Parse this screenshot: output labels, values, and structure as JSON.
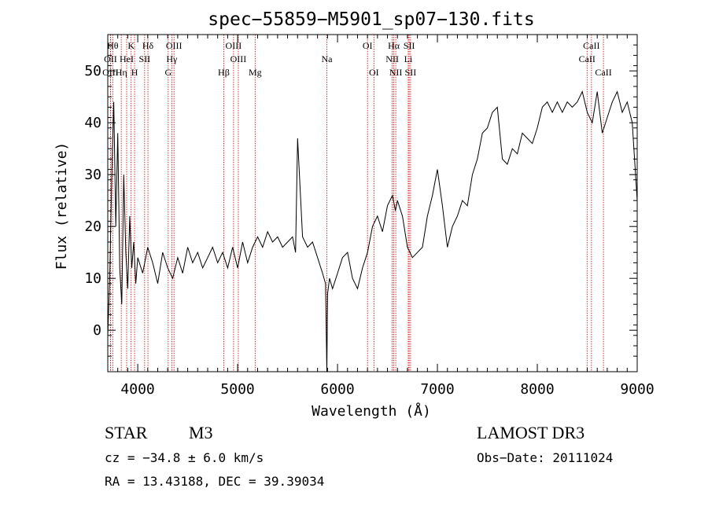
{
  "chart_data": {
    "type": "line",
    "title": "spec−55859−M5901_sp07−130.fits",
    "xlabel": "Wavelength (Å)",
    "ylabel": "Flux (relative)",
    "xlim": [
      3700,
      9000
    ],
    "ylim": [
      -8,
      57
    ],
    "xticks": [
      4000,
      5000,
      6000,
      7000,
      8000,
      9000
    ],
    "yticks": [
      0,
      10,
      20,
      30,
      40,
      50
    ],
    "series": [
      {
        "name": "flux",
        "x": [
          3700,
          3720,
          3740,
          3760,
          3780,
          3800,
          3820,
          3840,
          3860,
          3880,
          3900,
          3920,
          3940,
          3960,
          3980,
          4000,
          4050,
          4100,
          4150,
          4200,
          4250,
          4300,
          4350,
          4400,
          4450,
          4500,
          4550,
          4600,
          4650,
          4700,
          4750,
          4800,
          4850,
          4900,
          4950,
          5000,
          5050,
          5100,
          5150,
          5200,
          5250,
          5300,
          5350,
          5400,
          5450,
          5500,
          5550,
          5580,
          5600,
          5650,
          5700,
          5750,
          5800,
          5850,
          5880,
          5893,
          5900,
          5920,
          5950,
          6000,
          6050,
          6100,
          6150,
          6200,
          6250,
          6300,
          6350,
          6400,
          6450,
          6500,
          6550,
          6580,
          6600,
          6650,
          6700,
          6750,
          6800,
          6850,
          6900,
          6950,
          7000,
          7050,
          7100,
          7150,
          7200,
          7250,
          7300,
          7350,
          7400,
          7450,
          7500,
          7550,
          7600,
          7650,
          7700,
          7750,
          7800,
          7850,
          7900,
          7950,
          8000,
          8050,
          8100,
          8150,
          8200,
          8250,
          8300,
          8350,
          8400,
          8450,
          8500,
          8550,
          8600,
          8650,
          8700,
          8750,
          8800,
          8850,
          8900,
          8950,
          9000
        ],
        "y": [
          -1,
          10,
          30,
          44,
          20,
          38,
          12,
          5,
          30,
          15,
          8,
          22,
          12,
          17,
          9,
          14,
          11,
          16,
          13,
          9,
          15,
          12,
          10,
          14,
          11,
          16,
          13,
          15,
          12,
          14,
          16,
          13,
          15,
          12,
          16,
          12,
          17,
          13,
          16,
          18,
          16,
          19,
          17,
          18,
          16,
          17,
          18,
          15,
          37,
          18,
          16,
          17,
          14,
          11,
          9,
          -8,
          7,
          10,
          8,
          11,
          14,
          15,
          10,
          8,
          12,
          15,
          20,
          22,
          19,
          24,
          26,
          23,
          25,
          22,
          16,
          14,
          15,
          16,
          22,
          26,
          31,
          24,
          16,
          20,
          22,
          25,
          24,
          30,
          33,
          38,
          39,
          42,
          43,
          33,
          32,
          35,
          34,
          38,
          37,
          36,
          39,
          43,
          44,
          42,
          44,
          42,
          44,
          43,
          44,
          46,
          42,
          40,
          46,
          38,
          41,
          44,
          46,
          42,
          44,
          40,
          25
        ]
      }
    ],
    "lines": [
      {
        "label": "Hθ",
        "wl": 3750,
        "row": 1
      },
      {
        "label": "OII",
        "wl": 3727,
        "row": 2
      },
      {
        "label": "OIII",
        "wl": 3727,
        "row": 3
      },
      {
        "label": "Hη",
        "wl": 3835,
        "row": 3
      },
      {
        "label": "K",
        "wl": 3934,
        "row": 1
      },
      {
        "label": "HeI",
        "wl": 3889,
        "row": 2
      },
      {
        "label": "H",
        "wl": 3968,
        "row": 3
      },
      {
        "label": "SII",
        "wl": 4069,
        "row": 2
      },
      {
        "label": "Hδ",
        "wl": 4102,
        "row": 1
      },
      {
        "label": "OIII",
        "wl": 4363,
        "row": 1
      },
      {
        "label": "Hγ",
        "wl": 4341,
        "row": 2
      },
      {
        "label": "G",
        "wl": 4305,
        "row": 3
      },
      {
        "label": "Hβ",
        "wl": 4861,
        "row": 3
      },
      {
        "label": "OIII",
        "wl": 4959,
        "row": 1
      },
      {
        "label": "OIII",
        "wl": 5007,
        "row": 2
      },
      {
        "label": "Mg",
        "wl": 5175,
        "row": 3
      },
      {
        "label": "Na",
        "wl": 5893,
        "row": 2
      },
      {
        "label": "OI",
        "wl": 6300,
        "row": 1
      },
      {
        "label": "OI",
        "wl": 6364,
        "row": 3
      },
      {
        "label": "Hα",
        "wl": 6563,
        "row": 1
      },
      {
        "label": "NII",
        "wl": 6548,
        "row": 2
      },
      {
        "label": "NII",
        "wl": 6583,
        "row": 3
      },
      {
        "label": "SII",
        "wl": 6717,
        "row": 1
      },
      {
        "label": "Li",
        "wl": 6708,
        "row": 2
      },
      {
        "label": "SII",
        "wl": 6731,
        "row": 3
      },
      {
        "label": "CaII",
        "wl": 8542,
        "row": 1
      },
      {
        "label": "CaII",
        "wl": 8498,
        "row": 2
      },
      {
        "label": "CaII",
        "wl": 8662,
        "row": 3
      }
    ]
  },
  "info": {
    "object_class": "STAR",
    "subclass": "M3",
    "survey": "LAMOST DR3",
    "cz": "cz = −34.8 ± 6.0 km/s",
    "obs_date": "Obs−Date: 20111024",
    "radec": "RA =  13.43188, DEC =  39.39034"
  },
  "colors": {
    "line_marker": "#cc0000",
    "spectrum": "#000000",
    "axes": "#000000"
  }
}
